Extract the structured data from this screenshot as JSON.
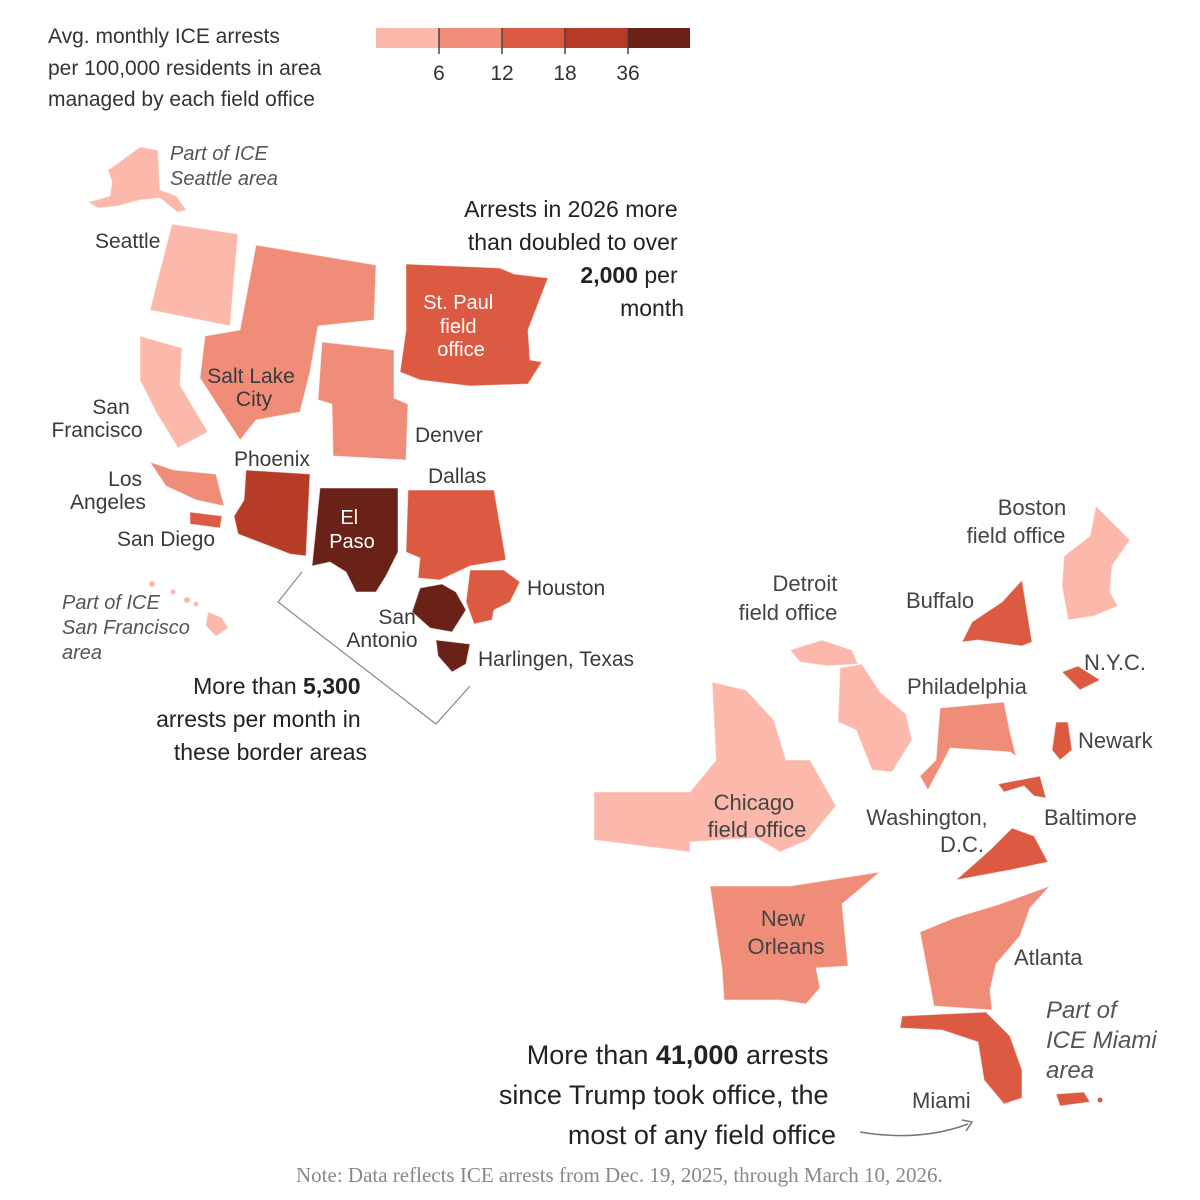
{
  "legend": {
    "title_lines": [
      "Avg. monthly ICE arrests",
      "per 100,000 residents in area",
      "managed by each field office"
    ],
    "ticks": [
      "6",
      "12",
      "18",
      "36"
    ],
    "colors": [
      "#fcb9ab",
      "#ef8d78",
      "#dc5a41",
      "#b63c28",
      "#6a2117"
    ]
  },
  "regions": [
    {
      "name": "Part of ICE Seattle area (Alaska)",
      "bin": 0
    },
    {
      "name": "Seattle",
      "bin": 0
    },
    {
      "name": "Salt Lake City",
      "bin": 1
    },
    {
      "name": "San Francisco",
      "bin": 0
    },
    {
      "name": "Denver",
      "bin": 1
    },
    {
      "name": "St. Paul field office",
      "bin": 2
    },
    {
      "name": "Los Angeles",
      "bin": 1
    },
    {
      "name": "San Diego",
      "bin": 2
    },
    {
      "name": "Phoenix",
      "bin": 3
    },
    {
      "name": "El Paso",
      "bin": 4
    },
    {
      "name": "Dallas",
      "bin": 2
    },
    {
      "name": "Houston",
      "bin": 2
    },
    {
      "name": "San Antonio",
      "bin": 4
    },
    {
      "name": "Harlingen, Texas",
      "bin": 4
    },
    {
      "name": "Part of ICE San Francisco area (Hawaii)",
      "bin": 0
    },
    {
      "name": "Detroit field office",
      "bin": 0
    },
    {
      "name": "Chicago field office",
      "bin": 0
    },
    {
      "name": "Buffalo",
      "bin": 2
    },
    {
      "name": "Boston field office",
      "bin": 0
    },
    {
      "name": "N.Y.C.",
      "bin": 2
    },
    {
      "name": "Philadelphia",
      "bin": 1
    },
    {
      "name": "Newark",
      "bin": 2
    },
    {
      "name": "Baltimore",
      "bin": 2
    },
    {
      "name": "Washington, D.C.",
      "bin": 2
    },
    {
      "name": "New Orleans",
      "bin": 1
    },
    {
      "name": "Atlanta",
      "bin": 1
    },
    {
      "name": "Miami",
      "bin": 2
    },
    {
      "name": "Part of ICE Miami area (Puerto Rico)",
      "bin": 2
    }
  ],
  "labels": {
    "ak": [
      "Part of ICE",
      "Seattle area"
    ],
    "seattle": "Seattle",
    "slc": [
      "Salt Lake",
      "City"
    ],
    "sf": [
      "San",
      "Francisco"
    ],
    "denver": "Denver",
    "stpaul": [
      "St. Paul",
      "field",
      "office"
    ],
    "la": [
      "Los",
      "Angeles"
    ],
    "sandiego": "San Diego",
    "phoenix": "Phoenix",
    "elpaso": [
      "El",
      "Paso"
    ],
    "dallas": "Dallas",
    "houston": "Houston",
    "sanantonio": [
      "San",
      "Antonio"
    ],
    "harlingen": "Harlingen, Texas",
    "hi": [
      "Part of ICE",
      "San Francisco",
      "area"
    ],
    "detroit": [
      "Detroit",
      "field office"
    ],
    "chicago": [
      "Chicago",
      "field office"
    ],
    "buffalo": "Buffalo",
    "boston": [
      "Boston",
      "field office"
    ],
    "nyc": "N.Y.C.",
    "philadelphia": "Philadelphia",
    "newark": "Newark",
    "baltimore": "Baltimore",
    "dc": [
      "Washington,",
      "D.C."
    ],
    "neworleans": [
      "New",
      "Orleans"
    ],
    "atlanta": "Atlanta",
    "miami": "Miami",
    "pr": [
      "Part of",
      "ICE Miami",
      "area"
    ]
  },
  "annotations": {
    "stpaul": {
      "l1": "Arrests in 2026 more",
      "l2": "than doubled to over",
      "l3_bold": "2,000",
      "l3_rest": " per",
      "l4": "month"
    },
    "border": {
      "l1_pre": "More than ",
      "l1_bold": "5,300",
      "l2": "arrests per month in",
      "l3": "these border areas"
    },
    "miami": {
      "l1_pre": "More than ",
      "l1_bold": "41,000",
      "l1_post": " arrests",
      "l2": "since Trump took office, the",
      "l3": "most of any field office"
    }
  },
  "note": "Note: Data reflects ICE arrests from Dec. 19, 2025, through March 10, 2026."
}
